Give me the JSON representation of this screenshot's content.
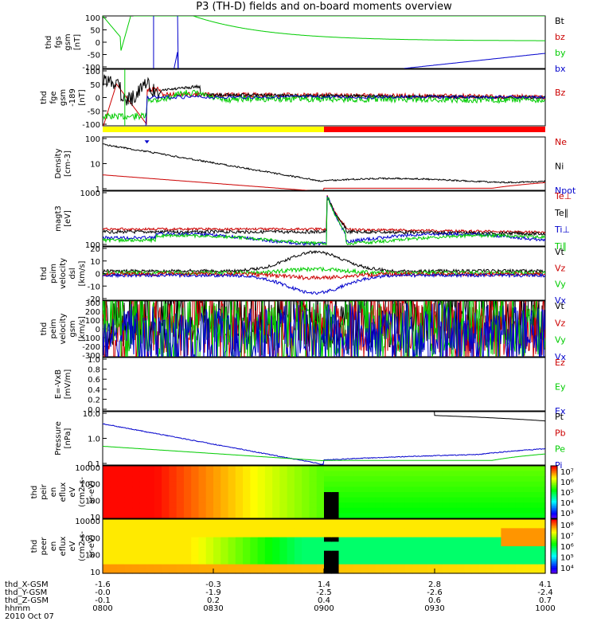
{
  "title": "P3 (TH-D) fields and on-board moments overview",
  "date_label": "2010 Oct 07",
  "chart_data": [
    {
      "id": "fgs",
      "type": "line",
      "ylabel": [
        "thd",
        "fgs",
        "gsm",
        "[nT]"
      ],
      "yticks": [
        "100",
        "50",
        "0",
        "-50",
        "-100"
      ],
      "ylim": [
        -100,
        100
      ],
      "legend": [
        {
          "name": "Bt",
          "color": "#000000"
        },
        {
          "name": "bz",
          "color": "#cc0000"
        },
        {
          "name": "by",
          "color": "#00cc00"
        },
        {
          "name": "bx",
          "color": "#0000cc"
        }
      ]
    },
    {
      "id": "fgm",
      "type": "line",
      "ylabel": [
        "thd",
        "fge",
        "gsm",
        "-189",
        "[nT]"
      ],
      "yticks": [
        "100",
        "50",
        "0",
        "-50",
        "-100"
      ],
      "ylim": [
        -120,
        120
      ],
      "legend": [
        {
          "name": "Bz",
          "color": "#cc0000"
        }
      ]
    },
    {
      "id": "mode_bar",
      "type": "bar",
      "segments": [
        {
          "from": 0,
          "to": 0.5,
          "color": "#ffff00"
        },
        {
          "from": 0.5,
          "to": 1,
          "color": "#ff0000"
        }
      ]
    },
    {
      "id": "density",
      "type": "line",
      "scale": "log",
      "ylabel": [
        "Density",
        "[cm-3]"
      ],
      "yticks": [
        "100",
        "10",
        "1"
      ],
      "legend": [
        {
          "name": "Ne",
          "color": "#cc0000"
        },
        {
          "name": "Ni",
          "color": "#000000"
        },
        {
          "name": "Npot",
          "color": "#0000cc"
        }
      ]
    },
    {
      "id": "temperature",
      "type": "line",
      "scale": "log",
      "ylabel": [
        "magt3",
        "[eV]"
      ],
      "yticks": [
        "1000",
        "100"
      ],
      "legend": [
        {
          "name": "Te⊥",
          "color": "#cc0000"
        },
        {
          "name": "Te∥",
          "color": "#000000"
        },
        {
          "name": "Ti⊥",
          "color": "#0000cc"
        },
        {
          "name": "Ti∥",
          "color": "#00cc00"
        }
      ]
    },
    {
      "id": "vel_dsl",
      "type": "line",
      "ylabel": [
        "thd",
        "peim",
        "velocity",
        "dsl",
        "[km/s]"
      ],
      "yticks": [
        "20",
        "10",
        "0",
        "-10",
        "-20"
      ],
      "ylim": [
        -20,
        20
      ],
      "legend": [
        {
          "name": "Vt",
          "color": "#000000"
        },
        {
          "name": "Vz",
          "color": "#cc0000"
        },
        {
          "name": "Vy",
          "color": "#00cc00"
        },
        {
          "name": "Vx",
          "color": "#0000cc"
        }
      ]
    },
    {
      "id": "vel_gsm",
      "type": "line",
      "ylabel": [
        "thd",
        "peim",
        "velocity",
        "gsm",
        "[km/s]"
      ],
      "yticks": [
        "300",
        "200",
        "100",
        "0",
        "-100",
        "-200",
        "-300"
      ],
      "ylim": [
        -300,
        300
      ],
      "legend": [
        {
          "name": "Vt",
          "color": "#000000"
        },
        {
          "name": "Vz",
          "color": "#cc0000"
        },
        {
          "name": "Vy",
          "color": "#00cc00"
        },
        {
          "name": "Vx",
          "color": "#0000cc"
        }
      ]
    },
    {
      "id": "efield",
      "type": "line",
      "ylabel": [
        "E=-VxB",
        "[mV/m]"
      ],
      "yticks": [
        "1.0",
        "0.8",
        "0.6",
        "0.4",
        "0.2",
        "0.0"
      ],
      "ylim": [
        0,
        1
      ],
      "legend": [
        {
          "name": "Ez",
          "color": "#cc0000"
        },
        {
          "name": "Ey",
          "color": "#00cc00"
        },
        {
          "name": "Ex",
          "color": "#0000cc"
        }
      ]
    },
    {
      "id": "pressure",
      "type": "line",
      "scale": "log",
      "ylabel": [
        "Pressure",
        "[nPa]"
      ],
      "yticks": [
        "10.0",
        "1.0",
        "0.1"
      ],
      "legend": [
        {
          "name": "Pt",
          "color": "#000000"
        },
        {
          "name": "Pb",
          "color": "#cc0000"
        },
        {
          "name": "Pe",
          "color": "#00cc00"
        },
        {
          "name": "Pi",
          "color": "#0000cc"
        }
      ]
    },
    {
      "id": "ion_spec",
      "type": "heatmap",
      "scale": "log",
      "ylabel": [
        "thd",
        "peir",
        "en",
        "eflux",
        "eV",
        "(cm2-s-",
        "sr-eV)"
      ],
      "yticks": [
        "10000",
        "1000",
        "100",
        "10"
      ],
      "colorbar": [
        "10⁷",
        "10⁶",
        "10⁵",
        "10⁴",
        "10³"
      ]
    },
    {
      "id": "ele_spec",
      "type": "heatmap",
      "scale": "log",
      "ylabel": [
        "thd",
        "peer",
        "en",
        "eflux",
        "eV",
        "(cm2-s-",
        "sr-eV)"
      ],
      "yticks": [
        "10000",
        "1000",
        "100",
        "10"
      ],
      "colorbar": [
        "10⁸",
        "10⁷",
        "10⁶",
        "10⁵",
        "10⁴"
      ]
    }
  ],
  "xaxis": {
    "row_labels": [
      "thd_X-GSM",
      "thd_Y-GSM",
      "thd_Z-GSM",
      "hhmm"
    ],
    "columns": [
      {
        "values": [
          "-1.6",
          "-0.0",
          "-0.1",
          "0800"
        ]
      },
      {
        "values": [
          "-0.3",
          "-1.9",
          "0.2",
          "0830"
        ]
      },
      {
        "values": [
          "1.4",
          "-2.5",
          "0.4",
          "0900"
        ]
      },
      {
        "values": [
          "2.8",
          "-2.6",
          "0.6",
          "0930"
        ]
      },
      {
        "values": [
          "4.1",
          "-2.4",
          "0.7",
          "1000"
        ]
      }
    ]
  }
}
